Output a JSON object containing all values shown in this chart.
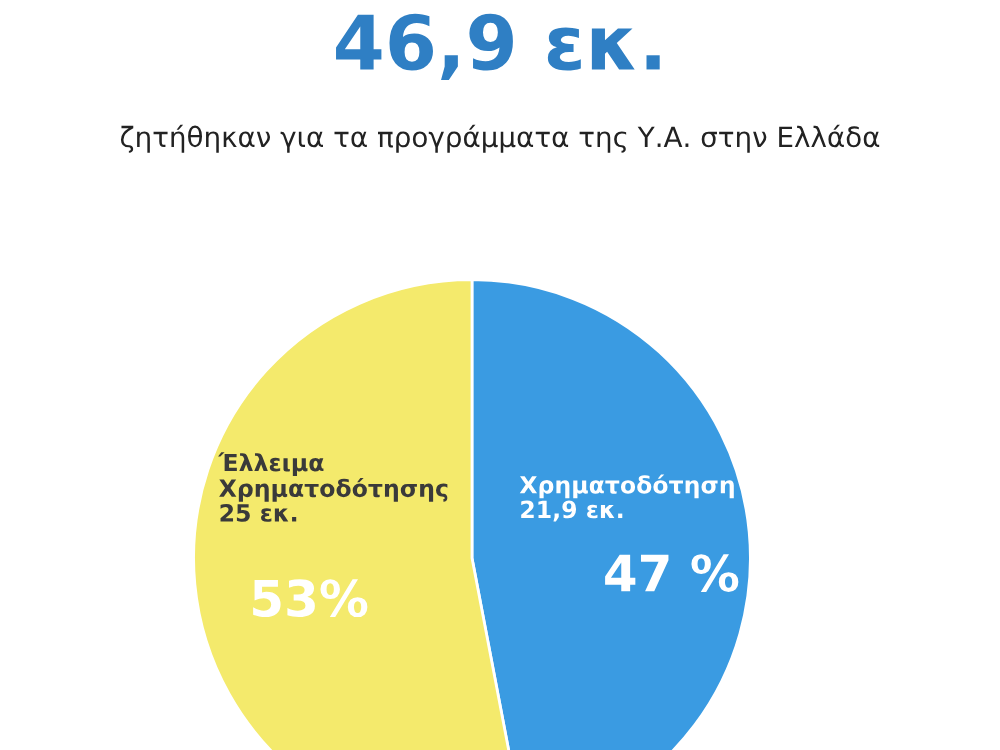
{
  "chart_data": {
    "type": "pie",
    "title": "46,9 εκ.",
    "subtitle": "ζητήθηκαν για τα προγράμματα της Υ.Α. στην Ελλάδα",
    "categories": [
      "Χρηματοδότηση\n21,9 εκ.",
      "Έλλειμα\nΧρηματοδότησης\n25 εκ."
    ],
    "values": [
      47,
      53
    ],
    "colors": [
      "#3a9be2",
      "#f4ea6c"
    ],
    "value_labels": [
      "47 %",
      "53%"
    ],
    "legend": false
  }
}
